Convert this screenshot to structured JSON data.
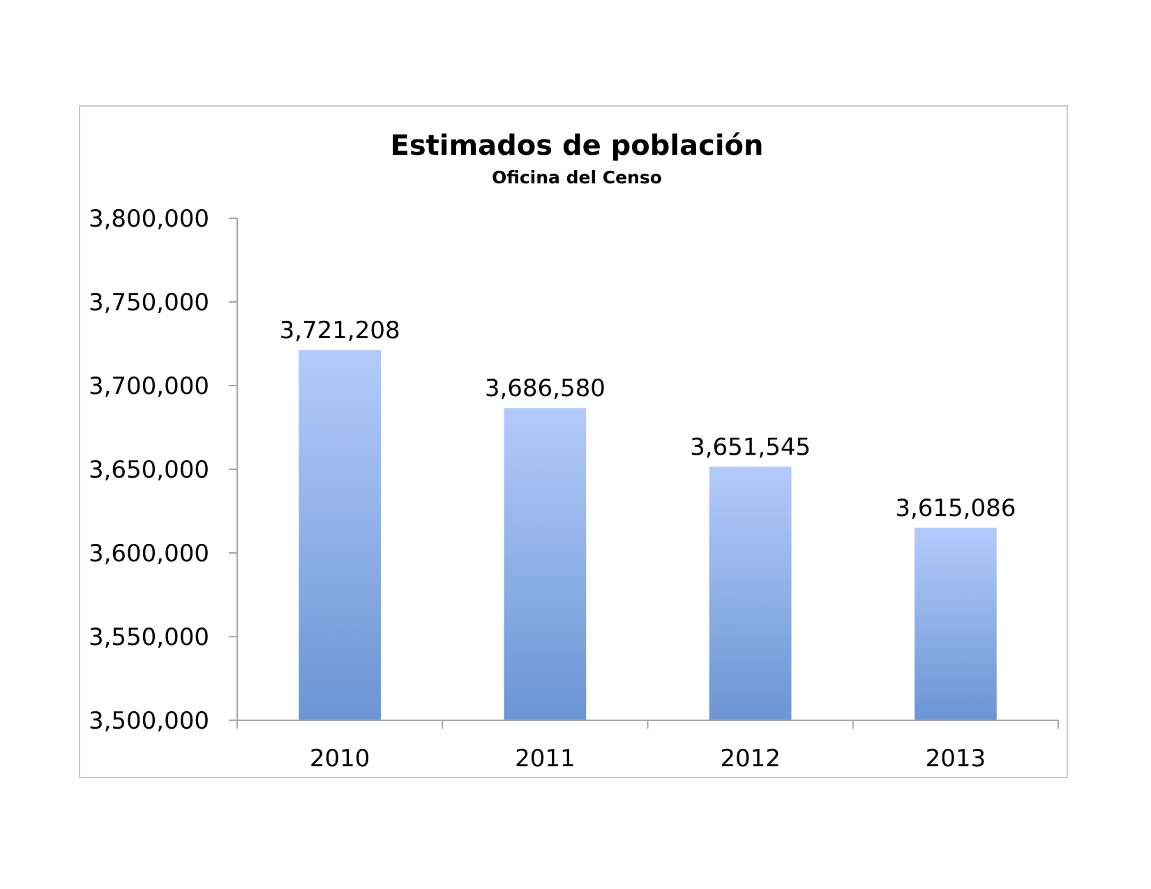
{
  "chart_data": {
    "type": "bar",
    "title": "Estimados de población",
    "subtitle": "Oficina del Censo",
    "categories": [
      "2010",
      "2011",
      "2012",
      "2013"
    ],
    "values": [
      3721208,
      3686580,
      3651545,
      3615086
    ],
    "data_labels": [
      "3,721,208",
      "3,686,580",
      "3,651,545",
      "3,615,086"
    ],
    "xlabel": "",
    "ylabel": "",
    "ylim": [
      3500000,
      3800000
    ],
    "yticks": [
      3500000,
      3550000,
      3600000,
      3650000,
      3700000,
      3750000,
      3800000
    ],
    "ytick_labels": [
      "3,500,000",
      "3,550,000",
      "3,600,000",
      "3,650,000",
      "3,700,000",
      "3,750,000",
      "3,800,000"
    ],
    "grid": false,
    "legend": "none",
    "bar_color_top": "#b3cbfb",
    "bar_color_bottom": "#6b95d4"
  }
}
